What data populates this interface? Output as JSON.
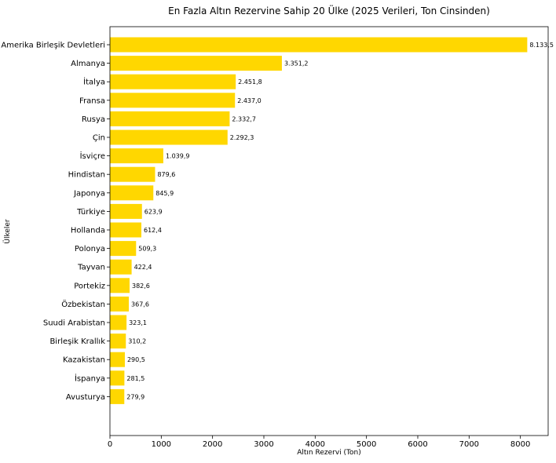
{
  "chart_data": {
    "type": "bar",
    "orientation": "horizontal",
    "title": "En Fazla Altın Rezervine Sahip 20 Ülke (2025 Verileri, Ton Cinsinden)",
    "xlabel": "Altın Rezervi (Ton)",
    "ylabel": "Ülkeler",
    "xlim": [
      0,
      8541
    ],
    "xticks": [
      0,
      1000,
      2000,
      3000,
      4000,
      5000,
      6000,
      7000,
      8000
    ],
    "grid": false,
    "bar_color": "#FFD700",
    "categories": [
      "Amerika Birleşik Devletleri",
      "Almanya",
      "İtalya",
      "Fransa",
      "Rusya",
      "Çin",
      "İsviçre",
      "Hindistan",
      "Japonya",
      "Türkiye",
      "Hollanda",
      "Polonya",
      "Tayvan",
      "Portekiz",
      "Özbekistan",
      "Suudi Arabistan",
      "Birleşik Krallık",
      "Kazakistan",
      "İspanya",
      "Avusturya"
    ],
    "values": [
      8133.5,
      3351.2,
      2451.8,
      2437.0,
      2332.7,
      2292.3,
      1039.9,
      879.6,
      845.9,
      623.9,
      612.4,
      509.3,
      422.4,
      382.6,
      367.6,
      323.1,
      310.2,
      290.5,
      281.5,
      279.9
    ],
    "value_labels": [
      "8.133,5",
      "3.351,2",
      "2.451,8",
      "2.437,0",
      "2.332,7",
      "2.292,3",
      "1.039,9",
      "879,6",
      "845,9",
      "623,9",
      "612,4",
      "509,3",
      "422,4",
      "382,6",
      "367,6",
      "323,1",
      "310,2",
      "290,5",
      "281,5",
      "279,9"
    ]
  }
}
